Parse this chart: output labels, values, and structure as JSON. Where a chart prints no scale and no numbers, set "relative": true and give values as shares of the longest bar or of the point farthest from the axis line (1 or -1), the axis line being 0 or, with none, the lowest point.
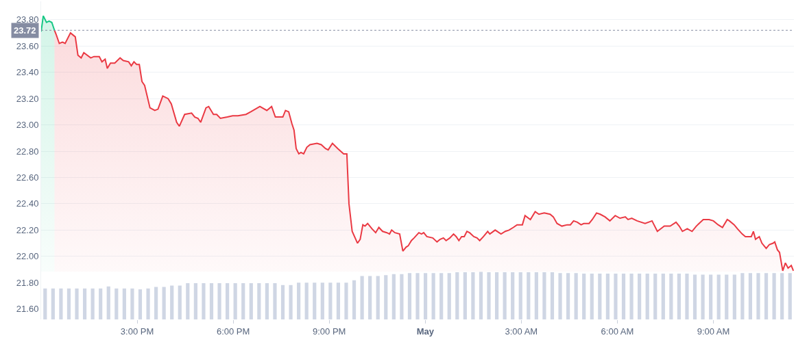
{
  "chart_data": [
    {
      "type": "area",
      "xlim": [
        "--04-30T12:00",
        "--05-01T11:31"
      ],
      "xticks": [
        {
          "value": "--04-30T15:00",
          "label": "3:00 PM"
        },
        {
          "value": "--04-30T18:00",
          "label": "6:00 PM"
        },
        {
          "value": "--04-30T21:00",
          "label": "9:00 PM"
        },
        {
          "value": "--05-01T00:00",
          "label": "May"
        },
        {
          "value": "--05-01T03:00",
          "label": "3:00 AM"
        },
        {
          "value": "--05-01T06:00",
          "label": "6:00 AM"
        },
        {
          "value": "--05-01T09:00",
          "label": "9:00 AM"
        }
      ],
      "ylim": [
        21.52,
        23.94
      ],
      "yticks": [
        {
          "value": 21.6,
          "label": "21.60"
        },
        {
          "value": 21.8,
          "label": "21.80"
        },
        {
          "value": 22.0,
          "label": "22.00"
        },
        {
          "value": 22.2,
          "label": "22.20"
        },
        {
          "value": 22.4,
          "label": "22.40"
        },
        {
          "value": 22.6,
          "label": "22.60"
        },
        {
          "value": 22.8,
          "label": "22.80"
        },
        {
          "value": 23.0,
          "label": "23.00"
        },
        {
          "value": 23.2,
          "label": "23.20"
        },
        {
          "value": 23.4,
          "label": "23.40"
        },
        {
          "value": 23.6,
          "label": "23.60"
        },
        {
          "value": 23.8,
          "label": "23.80"
        }
      ],
      "grid": "y",
      "ref_lines": [
        {
          "axis": "y",
          "value": 23.72,
          "label": "23.72",
          "color": "#858ca2",
          "line_style": "dotted"
        }
      ],
      "series": [
        {
          "type": "area",
          "color": "#16c784",
          "x": [
            "--04-30T12:00",
            "--04-30T12:04",
            "--04-30T12:10",
            "--04-30T12:15",
            "--04-30T12:20",
            "--04-30T12:25"
          ],
          "values": [
            23.71,
            23.83,
            23.78,
            23.79,
            23.78,
            23.72
          ]
        },
        {
          "type": "area",
          "color": "#ea3943",
          "x": [
            "--04-30T12:25",
            "--04-30T12:28",
            "--04-30T12:34",
            "--04-30T12:40",
            "--04-30T12:45",
            "--04-30T12:55",
            "--04-30T13:04",
            "--04-30T13:09",
            "--04-30T13:15",
            "--04-30T13:20",
            "--04-30T13:33",
            "--04-30T13:39",
            "--04-30T13:49",
            "--04-30T13:54",
            "--04-30T14:00",
            "--04-30T14:04",
            "--04-30T14:10",
            "--04-30T14:18",
            "--04-30T14:28",
            "--04-30T14:34",
            "--04-30T14:44",
            "--04-30T14:49",
            "--04-30T14:54",
            "--04-30T14:59",
            "--04-30T15:04",
            "--04-30T15:09",
            "--04-30T15:14",
            "--04-30T15:24",
            "--04-30T15:33",
            "--04-30T15:39",
            "--04-30T15:48",
            "--04-30T15:58",
            "--04-30T16:04",
            "--04-30T16:14",
            "--04-30T16:19",
            "--04-30T16:29",
            "--04-30T16:42",
            "--04-30T16:48",
            "--04-30T16:54",
            "--04-30T16:59",
            "--04-30T17:09",
            "--04-30T17:14",
            "--04-30T17:23",
            "--04-30T17:29",
            "--04-30T17:36",
            "--04-30T17:49",
            "--04-30T17:59",
            "--04-30T18:09",
            "--04-30T18:24",
            "--04-30T18:33",
            "--04-30T18:50",
            "--04-30T19:03",
            "--04-30T19:12",
            "--04-30T19:19",
            "--04-30T19:33",
            "--04-30T19:38",
            "--04-30T19:44",
            "--04-30T19:50",
            "--04-30T19:54",
            "--04-30T19:58",
            "--04-30T20:03",
            "--04-30T20:07",
            "--04-30T20:12",
            "--04-30T20:18",
            "--04-30T20:24",
            "--04-30T20:37",
            "--04-30T20:45",
            "--04-30T20:53",
            "--04-30T20:58",
            "--04-30T21:06",
            "--04-30T21:16",
            "--04-30T21:27",
            "--04-30T21:33",
            "--04-30T21:37",
            "--04-30T21:43",
            "--04-30T21:53",
            "--04-30T21:58",
            "--04-30T22:03",
            "--04-30T22:07",
            "--04-30T22:12",
            "--04-30T22:20",
            "--04-30T22:27",
            "--04-30T22:33",
            "--04-30T22:40",
            "--04-30T22:48",
            "--04-30T22:53",
            "--04-30T22:57",
            "--04-30T23:03",
            "--04-30T23:12",
            "--04-30T23:18",
            "--04-30T23:24",
            "--04-30T23:28",
            "--04-30T23:34",
            "--04-30T23:39",
            "--04-30T23:48",
            "--04-30T23:53",
            "--04-30T23:57",
            "--05-01T00:03",
            "--05-01T00:14",
            "--05-01T00:22",
            "--05-01T00:28",
            "--05-01T00:34",
            "--05-01T00:39",
            "--05-01T00:46",
            "--05-01T00:53",
            "--05-01T00:58",
            "--05-01T01:03",
            "--05-01T01:08",
            "--05-01T01:13",
            "--05-01T01:18",
            "--05-01T01:23",
            "--05-01T01:31",
            "--05-01T01:37",
            "--05-01T01:42",
            "--05-01T01:49",
            "--05-01T01:57",
            "--05-01T02:01",
            "--05-01T02:11",
            "--05-01T02:22",
            "--05-01T02:30",
            "--05-01T02:37",
            "--05-01T02:45",
            "--05-01T02:52",
            "--05-01T03:02",
            "--05-01T03:07",
            "--05-01T03:17",
            "--05-01T03:26",
            "--05-01T03:33",
            "--05-01T03:43",
            "--05-01T03:54",
            "--05-01T04:00",
            "--05-01T04:07",
            "--05-01T04:16",
            "--05-01T04:26",
            "--05-01T04:32",
            "--05-01T04:38",
            "--05-01T04:45",
            "--05-01T04:52",
            "--05-01T04:57",
            "--05-01T05:07",
            "--05-01T05:13",
            "--05-01T05:21",
            "--05-01T05:28",
            "--05-01T05:37",
            "--05-01T05:46",
            "--05-01T05:56",
            "--05-01T06:05",
            "--05-01T06:15",
            "--05-01T06:20",
            "--05-01T06:27",
            "--05-01T06:37",
            "--05-01T06:52",
            "--05-01T07:05",
            "--05-01T07:15",
            "--05-01T07:28",
            "--05-01T07:39",
            "--05-01T07:50",
            "--05-01T07:56",
            "--05-01T08:02",
            "--05-01T08:11",
            "--05-01T08:20",
            "--05-01T08:28",
            "--05-01T08:41",
            "--05-01T08:52",
            "--05-01T09:00",
            "--05-01T09:09",
            "--05-01T09:17",
            "--05-01T09:26",
            "--05-01T09:30",
            "--05-01T09:39",
            "--05-01T09:45",
            "--05-01T09:54",
            "--05-01T10:00",
            "--05-01T10:11",
            "--05-01T10:15",
            "--05-01T10:19",
            "--05-01T10:26",
            "--05-01T10:31",
            "--05-01T10:39",
            "--05-01T10:45",
            "--05-01T10:52",
            "--05-01T10:55",
            "--05-01T11:00",
            "--05-01T11:04",
            "--05-01T11:10",
            "--05-01T11:15",
            "--05-01T11:20",
            "--05-01T11:26",
            "--05-01T11:30"
          ],
          "values": [
            23.72,
            23.69,
            23.62,
            23.63,
            23.62,
            23.7,
            23.67,
            23.53,
            23.51,
            23.55,
            23.51,
            23.52,
            23.52,
            23.48,
            23.5,
            23.43,
            23.47,
            23.47,
            23.51,
            23.49,
            23.48,
            23.45,
            23.48,
            23.46,
            23.46,
            23.33,
            23.3,
            23.13,
            23.11,
            23.12,
            23.22,
            23.2,
            23.16,
            23.02,
            22.99,
            23.08,
            23.09,
            23.06,
            23.05,
            23.02,
            23.13,
            23.14,
            23.08,
            23.08,
            23.05,
            23.06,
            23.07,
            23.07,
            23.08,
            23.1,
            23.14,
            23.11,
            23.14,
            23.06,
            23.06,
            23.11,
            23.1,
            23.01,
            22.96,
            22.82,
            22.78,
            22.79,
            22.78,
            22.83,
            22.85,
            22.86,
            22.85,
            22.82,
            22.81,
            22.86,
            22.82,
            22.78,
            22.78,
            22.4,
            22.19,
            22.1,
            22.13,
            22.24,
            22.23,
            22.25,
            22.21,
            22.18,
            22.22,
            22.19,
            22.18,
            22.17,
            22.2,
            22.18,
            22.17,
            22.04,
            22.07,
            22.08,
            22.12,
            22.14,
            22.18,
            22.17,
            22.18,
            22.15,
            22.14,
            22.11,
            22.13,
            22.14,
            22.12,
            22.14,
            22.17,
            22.15,
            22.12,
            22.15,
            22.15,
            22.19,
            22.18,
            22.15,
            22.14,
            22.12,
            22.15,
            22.19,
            22.17,
            22.2,
            22.17,
            22.19,
            22.2,
            22.22,
            22.24,
            22.24,
            22.31,
            22.28,
            22.34,
            22.32,
            22.33,
            22.32,
            22.3,
            22.25,
            22.23,
            22.24,
            22.24,
            22.27,
            22.26,
            22.24,
            22.25,
            22.25,
            22.28,
            22.33,
            22.32,
            22.3,
            22.27,
            22.31,
            22.29,
            22.3,
            22.28,
            22.29,
            22.27,
            22.25,
            22.27,
            22.19,
            22.23,
            22.23,
            22.26,
            22.23,
            22.19,
            22.21,
            22.19,
            22.23,
            22.28,
            22.28,
            22.27,
            22.24,
            22.22,
            22.28,
            22.27,
            22.24,
            22.21,
            22.17,
            22.15,
            22.15,
            22.19,
            22.13,
            22.15,
            22.1,
            22.06,
            22.09,
            22.1,
            22.11,
            22.05,
            22.03,
            21.89,
            21.95,
            21.91,
            21.93,
            21.89
          ]
        }
      ]
    },
    {
      "type": "bar",
      "relative": true,
      "color": "#cfd6e4",
      "categories": [
        null,
        null,
        null,
        null,
        null,
        null,
        null,
        null,
        null,
        null,
        null,
        null,
        null,
        null,
        null,
        null,
        null,
        null,
        null,
        null,
        null,
        null,
        null,
        null,
        null,
        null,
        null,
        null,
        null,
        null,
        null,
        null,
        null,
        null,
        null,
        null,
        null,
        null,
        null,
        null,
        null,
        null,
        null,
        null,
        null,
        null,
        null,
        null,
        null,
        null,
        null,
        null,
        null,
        null,
        null,
        null,
        null,
        null,
        null,
        null,
        null,
        null,
        null,
        null,
        null,
        null,
        null,
        null,
        null,
        null,
        null,
        null,
        null,
        null,
        null,
        null,
        null,
        null,
        null,
        null,
        null,
        null,
        null,
        null,
        null,
        null,
        null,
        null,
        null,
        null,
        null,
        null,
        null,
        null,
        null
      ],
      "values": [
        0.65,
        0.65,
        0.65,
        0.65,
        0.65,
        0.65,
        0.65,
        0.65,
        0.69,
        0.65,
        0.65,
        0.65,
        0.63,
        0.65,
        0.68,
        0.68,
        0.71,
        0.71,
        0.76,
        0.76,
        0.76,
        0.76,
        0.76,
        0.76,
        0.76,
        0.76,
        0.76,
        0.76,
        0.76,
        0.76,
        0.72,
        0.72,
        0.77,
        0.77,
        0.77,
        0.77,
        0.77,
        0.77,
        0.77,
        0.82,
        0.91,
        0.91,
        0.91,
        0.93,
        0.95,
        0.95,
        0.97,
        0.97,
        0.97,
        0.97,
        0.97,
        0.97,
        0.99,
        0.99,
        0.99,
        1,
        0.99,
        0.99,
        0.99,
        0.99,
        0.99,
        0.99,
        0.99,
        0.99,
        0.99,
        0.97,
        0.97,
        0.97,
        0.96,
        0.96,
        0.96,
        0.96,
        0.96,
        0.96,
        0.96,
        0.96,
        0.96,
        0.96,
        0.96,
        0.96,
        0.96,
        0.96,
        0.94,
        0.94,
        0.94,
        0.94,
        0.94,
        0.94,
        0.97,
        0.97,
        0.97,
        0.97,
        0.97,
        0.97,
        0.97
      ]
    }
  ]
}
